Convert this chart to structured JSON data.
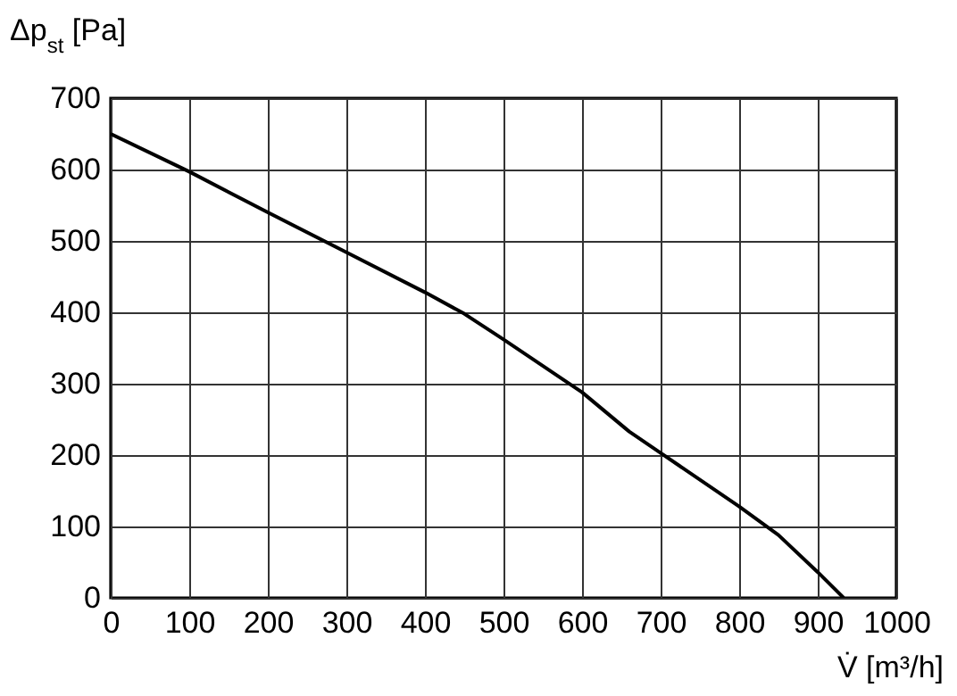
{
  "chart_data": {
    "type": "line",
    "xlabel": "V̇ [m³/h]",
    "ylabel": "Δp$_{st}$ [Pa]",
    "x": [
      0,
      100,
      200,
      300,
      400,
      450,
      500,
      600,
      660,
      700,
      800,
      850,
      900,
      933
    ],
    "series": [
      {
        "color": "#000000",
        "values": [
          650,
          597,
          540,
          484,
          428,
          398,
          362,
          288,
          233,
          203,
          128,
          88,
          36,
          0
        ]
      }
    ],
    "xlim": [
      0,
      1000
    ],
    "xticks": [
      0,
      100,
      200,
      300,
      400,
      500,
      600,
      700,
      800,
      900,
      1000
    ],
    "ylim": [
      0,
      700
    ],
    "yticks": [
      0,
      100,
      200,
      300,
      400,
      500,
      600,
      700
    ],
    "grid": true,
    "legend": false,
    "marker": "none",
    "line_style": "solid"
  }
}
